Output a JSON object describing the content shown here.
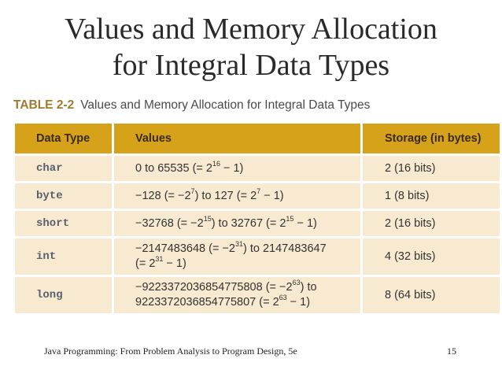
{
  "title": {
    "line1": "Values and Memory Allocation",
    "line2": "for Integral Data Types"
  },
  "caption": {
    "label": "TABLE 2-2",
    "text": "Values and Memory Allocation for Integral Data Types"
  },
  "table": {
    "headers": [
      "Data Type",
      "Values",
      "Storage (in bytes)"
    ],
    "rows": [
      {
        "type": "char",
        "v": [
          "0 to 65535 (= 2",
          "16",
          " − 1)"
        ],
        "storage": "2 (16 bits)"
      },
      {
        "type": "byte",
        "v": [
          "−128 (= −2",
          "7",
          ") to 127 (= 2",
          "7",
          " − 1)"
        ],
        "storage": "1 (8 bits)"
      },
      {
        "type": "short",
        "v": [
          "−32768 (= −2",
          "15",
          ") to 32767 (= 2",
          "15",
          " − 1)"
        ],
        "storage": "2 (16 bits)"
      },
      {
        "type": "int",
        "l1": [
          "−2147483648 (= −2",
          "31",
          ") to 2147483647"
        ],
        "l2": [
          "(= 2",
          "31",
          " − 1)"
        ],
        "storage": "4 (32 bits)"
      },
      {
        "type": "long",
        "l1": [
          "−9223372036854775808 (= −2",
          "63",
          ") to"
        ],
        "l2": [
          "9223372036854775807 (= 2",
          "63",
          " − 1)"
        ],
        "storage": "8 (64 bits)"
      }
    ]
  },
  "footer": {
    "text": "Java Programming: From Problem Analysis to Program Design, 5e",
    "page": "15"
  }
}
